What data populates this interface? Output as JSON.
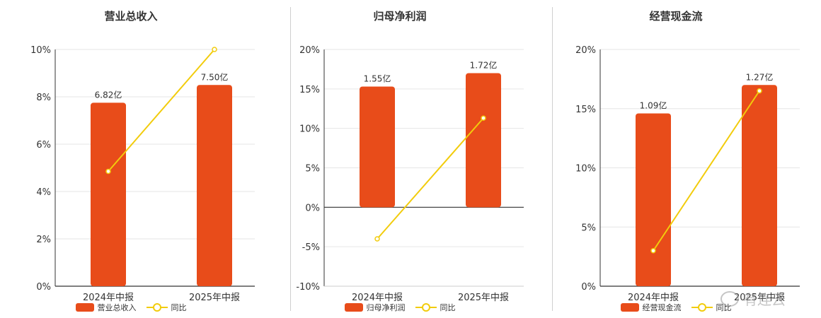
{
  "colors": {
    "bar": "#E84C1A",
    "line": "#F2CC0C",
    "axis": "#333333",
    "grid": "#e6e6e6"
  },
  "watermark": "有连云",
  "chart_data": [
    {
      "type": "bar",
      "title": "营业总收入",
      "categories": [
        "2024年中报",
        "2025年中报"
      ],
      "bar_series": {
        "name": "营业总收入",
        "labels": [
          "6.82亿",
          "7.50亿"
        ],
        "values_on_left_axis": [
          7.75,
          8.5
        ]
      },
      "line_series": {
        "name": "同比",
        "values": [
          4.85,
          10.0
        ]
      },
      "ylim": [
        0,
        10
      ],
      "yticks": [
        0,
        2,
        4,
        6,
        8,
        10
      ],
      "ytick_labels": [
        "0%",
        "2%",
        "4%",
        "6%",
        "8%",
        "10%"
      ],
      "grid": true
    },
    {
      "type": "bar",
      "title": "归母净利润",
      "categories": [
        "2024年中报",
        "2025年中报"
      ],
      "bar_series": {
        "name": "归母净利润",
        "labels": [
          "1.55亿",
          "1.72亿"
        ],
        "values_on_left_axis": [
          15.3,
          17.0
        ]
      },
      "line_series": {
        "name": "同比",
        "values": [
          -4.0,
          11.3
        ]
      },
      "ylim": [
        -10,
        20
      ],
      "yticks": [
        -10,
        -5,
        0,
        5,
        10,
        15,
        20
      ],
      "ytick_labels": [
        "-10%",
        "-5%",
        "0%",
        "5%",
        "10%",
        "15%",
        "20%"
      ],
      "grid": true
    },
    {
      "type": "bar",
      "title": "经营现金流",
      "categories": [
        "2024年中报",
        "2025年中报"
      ],
      "bar_series": {
        "name": "经营现金流",
        "labels": [
          "1.09亿",
          "1.27亿"
        ],
        "values_on_left_axis": [
          14.6,
          17.0
        ]
      },
      "line_series": {
        "name": "同比",
        "values": [
          3.0,
          16.5
        ]
      },
      "ylim": [
        0,
        20
      ],
      "yticks": [
        0,
        5,
        10,
        15,
        20
      ],
      "ytick_labels": [
        "0%",
        "5%",
        "10%",
        "15%",
        "20%"
      ],
      "grid": true
    }
  ]
}
